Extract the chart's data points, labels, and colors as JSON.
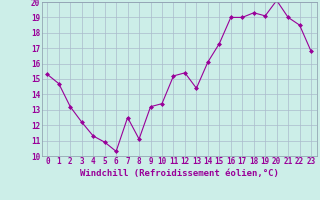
{
  "x": [
    0,
    1,
    2,
    3,
    4,
    5,
    6,
    7,
    8,
    9,
    10,
    11,
    12,
    13,
    14,
    15,
    16,
    17,
    18,
    19,
    20,
    21,
    22,
    23
  ],
  "y": [
    15.3,
    14.7,
    13.2,
    12.2,
    11.3,
    10.9,
    10.3,
    12.5,
    11.1,
    13.2,
    13.4,
    15.2,
    15.4,
    14.4,
    16.1,
    17.3,
    19.0,
    19.0,
    19.3,
    19.1,
    20.1,
    19.0,
    18.5,
    16.8
  ],
  "line_color": "#990099",
  "marker": "D",
  "marker_size": 2.0,
  "bg_color": "#cceee8",
  "grid_color": "#aabbcc",
  "xlabel": "Windchill (Refroidissement éolien,°C)",
  "ylim": [
    10,
    20
  ],
  "xlim_min": -0.5,
  "xlim_max": 23.5,
  "yticks": [
    10,
    11,
    12,
    13,
    14,
    15,
    16,
    17,
    18,
    19,
    20
  ],
  "xticks": [
    0,
    1,
    2,
    3,
    4,
    5,
    6,
    7,
    8,
    9,
    10,
    11,
    12,
    13,
    14,
    15,
    16,
    17,
    18,
    19,
    20,
    21,
    22,
    23
  ],
  "tick_fontsize": 5.5,
  "xlabel_fontsize": 6.5,
  "line_width": 0.8
}
